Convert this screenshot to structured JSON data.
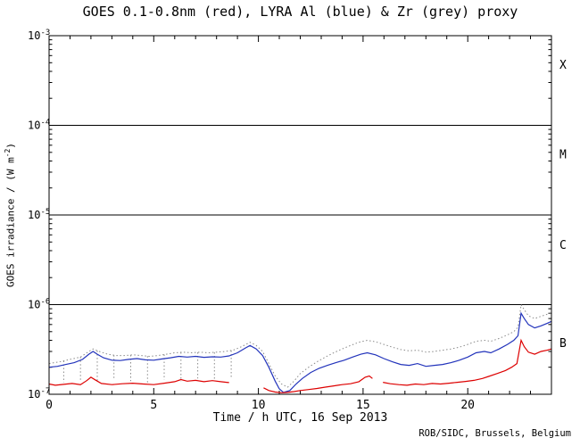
{
  "page": {
    "footer": "ROB/SIDC, Brussels, Belgium"
  },
  "chart_data": {
    "type": "line",
    "title": "GOES 0.1-0.8nm (red), LYRA Al (blue) & Zr (grey) proxy",
    "xlabel": "Time / h UTC, 16 Sep 2013",
    "ylabel_pre": "GOES irradiance / (W m",
    "ylabel_sup": "-2",
    "ylabel_post": ")",
    "x_range": [
      0,
      24
    ],
    "y_range": [
      1e-07,
      0.001
    ],
    "y_scale": "log",
    "grid": false,
    "legend": "in title",
    "x_major_ticks": [
      {
        "value": 0,
        "label": "0"
      },
      {
        "value": 5,
        "label": "5"
      },
      {
        "value": 10,
        "label": "10"
      },
      {
        "value": 15,
        "label": "15"
      },
      {
        "value": 20,
        "label": "20"
      }
    ],
    "x_minor_step": 1,
    "y_major_ticks": [
      {
        "value": 1e-07,
        "base": "10",
        "exp": "-7"
      },
      {
        "value": 1e-06,
        "base": "10",
        "exp": "-6"
      },
      {
        "value": 1e-05,
        "base": "10",
        "exp": "-5"
      },
      {
        "value": 0.0001,
        "base": "10",
        "exp": "-4"
      },
      {
        "value": 0.001,
        "base": "10",
        "exp": "-3"
      }
    ],
    "class_lines": [
      1e-06,
      1e-05,
      0.0001
    ],
    "class_labels": [
      {
        "label": "X",
        "value": 0.00047
      },
      {
        "label": "M",
        "value": 4.7e-05
      },
      {
        "label": "C",
        "value": 4.6e-06
      },
      {
        "label": "B",
        "value": 3.7e-07
      }
    ],
    "series": [
      {
        "name": "LYRA Zr proxy",
        "color": "#8a8a8a",
        "style": "dotted",
        "points": [
          [
            0,
            2.2e-07
          ],
          [
            0.5,
            2.3e-07
          ],
          [
            1.0,
            2.45e-07
          ],
          [
            1.5,
            2.6e-07
          ],
          [
            1.9,
            3e-07
          ],
          [
            2.1,
            3.2e-07
          ],
          [
            2.4,
            3e-07
          ],
          [
            2.8,
            2.8e-07
          ],
          [
            3.2,
            2.7e-07
          ],
          [
            3.6,
            2.7e-07
          ],
          [
            4.0,
            2.75e-07
          ],
          [
            4.4,
            2.7e-07
          ],
          [
            4.8,
            2.65e-07
          ],
          [
            5.2,
            2.7e-07
          ],
          [
            5.6,
            2.8e-07
          ],
          [
            6.0,
            2.9e-07
          ],
          [
            6.4,
            2.95e-07
          ],
          [
            6.8,
            2.9e-07
          ],
          [
            7.2,
            2.95e-07
          ],
          [
            7.6,
            2.9e-07
          ],
          [
            8.0,
            2.95e-07
          ],
          [
            8.4,
            3e-07
          ],
          [
            8.8,
            3.1e-07
          ],
          [
            9.2,
            3.4e-07
          ],
          [
            9.6,
            3.8e-07
          ],
          [
            9.9,
            3.5e-07
          ],
          [
            10.2,
            3e-07
          ],
          [
            10.5,
            2.2e-07
          ],
          [
            10.8,
            1.6e-07
          ],
          [
            11.1,
            1.3e-07
          ],
          [
            11.4,
            1.2e-07
          ],
          [
            11.7,
            1.4e-07
          ],
          [
            12.0,
            1.7e-07
          ],
          [
            12.4,
            2e-07
          ],
          [
            12.8,
            2.3e-07
          ],
          [
            13.2,
            2.6e-07
          ],
          [
            13.6,
            2.9e-07
          ],
          [
            14.0,
            3.2e-07
          ],
          [
            14.4,
            3.5e-07
          ],
          [
            14.8,
            3.8e-07
          ],
          [
            15.2,
            4e-07
          ],
          [
            15.6,
            3.85e-07
          ],
          [
            16.0,
            3.6e-07
          ],
          [
            16.4,
            3.35e-07
          ],
          [
            16.8,
            3.15e-07
          ],
          [
            17.2,
            3.05e-07
          ],
          [
            17.6,
            3.1e-07
          ],
          [
            18.0,
            2.95e-07
          ],
          [
            18.4,
            3e-07
          ],
          [
            18.8,
            3.1e-07
          ],
          [
            19.2,
            3.2e-07
          ],
          [
            19.6,
            3.35e-07
          ],
          [
            20.0,
            3.6e-07
          ],
          [
            20.4,
            3.9e-07
          ],
          [
            20.8,
            4e-07
          ],
          [
            21.1,
            3.9e-07
          ],
          [
            21.5,
            4.2e-07
          ],
          [
            21.9,
            4.6e-07
          ],
          [
            22.2,
            5e-07
          ],
          [
            22.4,
            5.6e-07
          ],
          [
            22.55,
            1e-06
          ],
          [
            22.7,
            8.8e-07
          ],
          [
            22.9,
            7.5e-07
          ],
          [
            23.2,
            7e-07
          ],
          [
            23.5,
            7.4e-07
          ],
          [
            23.8,
            7.8e-07
          ],
          [
            24,
            8e-07
          ]
        ],
        "spikes": [
          [
            0.7,
            1.35e-07
          ],
          [
            1.5,
            1.4e-07
          ],
          [
            2.3,
            1.35e-07
          ],
          [
            3.1,
            1.45e-07
          ],
          [
            3.9,
            1.4e-07
          ],
          [
            4.7,
            1.35e-07
          ],
          [
            5.5,
            1.45e-07
          ],
          [
            6.3,
            1.4e-07
          ],
          [
            7.1,
            1.5e-07
          ],
          [
            7.9,
            1.45e-07
          ],
          [
            8.7,
            1.5e-07
          ]
        ]
      },
      {
        "name": "LYRA Al",
        "color": "#2233bb",
        "style": "solid",
        "points": [
          [
            0,
            2e-07
          ],
          [
            0.4,
            2.05e-07
          ],
          [
            0.8,
            2.15e-07
          ],
          [
            1.2,
            2.25e-07
          ],
          [
            1.6,
            2.45e-07
          ],
          [
            1.9,
            2.8e-07
          ],
          [
            2.1,
            3e-07
          ],
          [
            2.3,
            2.8e-07
          ],
          [
            2.6,
            2.55e-07
          ],
          [
            3.0,
            2.4e-07
          ],
          [
            3.4,
            2.38e-07
          ],
          [
            3.8,
            2.45e-07
          ],
          [
            4.2,
            2.5e-07
          ],
          [
            4.6,
            2.42e-07
          ],
          [
            5.0,
            2.4e-07
          ],
          [
            5.4,
            2.48e-07
          ],
          [
            5.8,
            2.55e-07
          ],
          [
            6.2,
            2.65e-07
          ],
          [
            6.6,
            2.6e-07
          ],
          [
            7.0,
            2.65e-07
          ],
          [
            7.4,
            2.58e-07
          ],
          [
            7.8,
            2.62e-07
          ],
          [
            8.2,
            2.6e-07
          ],
          [
            8.6,
            2.68e-07
          ],
          [
            9.0,
            2.9e-07
          ],
          [
            9.4,
            3.3e-07
          ],
          [
            9.6,
            3.5e-07
          ],
          [
            9.9,
            3.2e-07
          ],
          [
            10.2,
            2.7e-07
          ],
          [
            10.5,
            2e-07
          ],
          [
            10.8,
            1.4e-07
          ],
          [
            11.0,
            1.15e-07
          ],
          [
            11.2,
            1.05e-07
          ],
          [
            11.5,
            1.1e-07
          ],
          [
            11.8,
            1.3e-07
          ],
          [
            12.1,
            1.5e-07
          ],
          [
            12.5,
            1.75e-07
          ],
          [
            12.9,
            1.95e-07
          ],
          [
            13.3,
            2.1e-07
          ],
          [
            13.7,
            2.25e-07
          ],
          [
            14.1,
            2.4e-07
          ],
          [
            14.5,
            2.6e-07
          ],
          [
            14.9,
            2.8e-07
          ],
          [
            15.2,
            2.9e-07
          ],
          [
            15.6,
            2.75e-07
          ],
          [
            16.0,
            2.5e-07
          ],
          [
            16.4,
            2.3e-07
          ],
          [
            16.8,
            2.15e-07
          ],
          [
            17.2,
            2.1e-07
          ],
          [
            17.6,
            2.2e-07
          ],
          [
            18.0,
            2.05e-07
          ],
          [
            18.4,
            2.1e-07
          ],
          [
            18.8,
            2.15e-07
          ],
          [
            19.2,
            2.25e-07
          ],
          [
            19.6,
            2.4e-07
          ],
          [
            20.0,
            2.6e-07
          ],
          [
            20.4,
            2.9e-07
          ],
          [
            20.8,
            3e-07
          ],
          [
            21.1,
            2.9e-07
          ],
          [
            21.5,
            3.2e-07
          ],
          [
            21.9,
            3.6e-07
          ],
          [
            22.2,
            4e-07
          ],
          [
            22.4,
            4.5e-07
          ],
          [
            22.55,
            8e-07
          ],
          [
            22.7,
            7e-07
          ],
          [
            22.9,
            6e-07
          ],
          [
            23.2,
            5.5e-07
          ],
          [
            23.5,
            5.8e-07
          ],
          [
            23.8,
            6.2e-07
          ],
          [
            24,
            6.5e-07
          ]
        ]
      },
      {
        "name": "GOES 0.1-0.8nm",
        "color": "#dd0000",
        "style": "solid",
        "points": [
          [
            0,
            1.3e-07
          ],
          [
            0.3,
            1.26e-07
          ],
          [
            0.7,
            1.29e-07
          ],
          [
            1.1,
            1.32e-07
          ],
          [
            1.5,
            1.28e-07
          ],
          [
            1.8,
            1.42e-07
          ],
          [
            2.0,
            1.55e-07
          ],
          [
            2.2,
            1.45e-07
          ],
          [
            2.5,
            1.32e-07
          ],
          [
            3.0,
            1.28e-07
          ],
          [
            3.5,
            1.31e-07
          ],
          [
            4.0,
            1.33e-07
          ],
          [
            4.5,
            1.3e-07
          ],
          [
            5.0,
            1.28e-07
          ],
          [
            5.5,
            1.33e-07
          ],
          [
            6.0,
            1.38e-07
          ],
          [
            6.3,
            1.46e-07
          ],
          [
            6.6,
            1.4e-07
          ],
          [
            7.0,
            1.43e-07
          ],
          [
            7.4,
            1.38e-07
          ],
          [
            7.8,
            1.42e-07
          ],
          [
            8.2,
            1.38e-07
          ],
          [
            8.6,
            1.35e-07
          ],
          null,
          [
            10.25,
            1.18e-07
          ],
          [
            10.5,
            1.1e-07
          ],
          [
            10.8,
            1.06e-07
          ],
          [
            11.1,
            1.04e-07
          ],
          [
            11.4,
            1.05e-07
          ],
          [
            11.7,
            1.07e-07
          ],
          [
            12.0,
            1.1e-07
          ],
          [
            12.4,
            1.13e-07
          ],
          [
            12.8,
            1.16e-07
          ],
          [
            13.2,
            1.2e-07
          ],
          [
            13.6,
            1.24e-07
          ],
          [
            14.0,
            1.28e-07
          ],
          [
            14.4,
            1.31e-07
          ],
          [
            14.8,
            1.38e-07
          ],
          [
            15.1,
            1.55e-07
          ],
          [
            15.3,
            1.6e-07
          ],
          [
            15.45,
            1.5e-07
          ],
          null,
          [
            15.95,
            1.36e-07
          ],
          [
            16.3,
            1.31e-07
          ],
          [
            16.7,
            1.28e-07
          ],
          [
            17.1,
            1.26e-07
          ],
          [
            17.5,
            1.3e-07
          ],
          [
            17.9,
            1.28e-07
          ],
          [
            18.3,
            1.32e-07
          ],
          [
            18.7,
            1.3e-07
          ],
          [
            19.1,
            1.33e-07
          ],
          [
            19.5,
            1.36e-07
          ],
          [
            19.9,
            1.39e-07
          ],
          [
            20.3,
            1.43e-07
          ],
          [
            20.7,
            1.5e-07
          ],
          [
            21.0,
            1.58e-07
          ],
          [
            21.4,
            1.7e-07
          ],
          [
            21.8,
            1.84e-07
          ],
          [
            22.1,
            2e-07
          ],
          [
            22.35,
            2.2e-07
          ],
          [
            22.55,
            4e-07
          ],
          [
            22.7,
            3.4e-07
          ],
          [
            22.9,
            2.95e-07
          ],
          [
            23.2,
            2.8e-07
          ],
          [
            23.5,
            3e-07
          ],
          [
            23.8,
            3.1e-07
          ],
          [
            24,
            3.2e-07
          ]
        ]
      }
    ]
  }
}
